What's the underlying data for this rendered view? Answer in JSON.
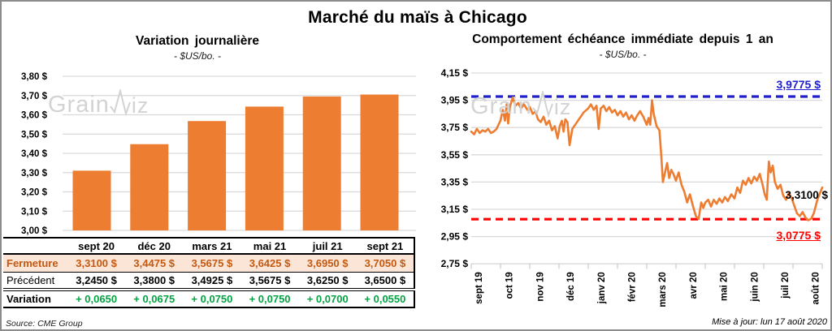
{
  "page_title": "Marché du maïs à Chicago",
  "watermark": {
    "part1": "Grain",
    "part2": "iz"
  },
  "source": "Source: CME Group",
  "updated": "Mise à jour: lun 17 août 2020",
  "colors": {
    "accent_orange": "#ED7D31",
    "threshold_blue": "#2020CC",
    "threshold_red": "#FF0000",
    "variation_green": "#00A441",
    "fermeture_bg": "#FBE5D6",
    "fermeture_text": "#C45911",
    "gridline": "#D9D9D9",
    "watermark_gray": "#D3D3D3"
  },
  "table": {
    "columns": [
      "sept 20",
      "déc 20",
      "mars 21",
      "mai 21",
      "juil 21",
      "sept 21"
    ],
    "rows": [
      {
        "label": "Fermeture",
        "values": [
          "3,3100 $",
          "3,4475 $",
          "3,5675 $",
          "3,6425 $",
          "3,6950 $",
          "3,7050 $"
        ]
      },
      {
        "label": "Précédent",
        "values": [
          "3,2450 $",
          "3,3800 $",
          "3,4925 $",
          "3,5675 $",
          "3,6250 $",
          "3,6500 $"
        ]
      },
      {
        "label": "Variation",
        "values": [
          "+ 0,0650",
          "+ 0,0675",
          "+ 0,0750",
          "+ 0,0750",
          "+ 0,0700",
          "+ 0,0550"
        ]
      }
    ]
  },
  "chart_data": [
    {
      "type": "bar",
      "title": "Variation journalière",
      "subtitle": "- $US/bo. -",
      "categories": [
        "sept 20",
        "déc 20",
        "mars 21",
        "mai 21",
        "juil 21",
        "sept 21"
      ],
      "values": [
        3.31,
        3.4475,
        3.5675,
        3.6425,
        3.695,
        3.705
      ],
      "ylim": [
        3.0,
        3.8
      ],
      "y_step": 0.1,
      "y_ticks": [
        "3,00 $",
        "3,10 $",
        "3,20 $",
        "3,30 $",
        "3,40 $",
        "3,50 $",
        "3,60 $",
        "3,70 $",
        "3,80 $"
      ],
      "grid": true,
      "bar_color": "#ED7D31"
    },
    {
      "type": "line",
      "title": "Comportement échéance immédiate depuis 1 an",
      "subtitle": "- $US/bo. -",
      "ylim": [
        2.75,
        4.15
      ],
      "y_step": 0.2,
      "y_ticks": [
        "2,75 $",
        "2,95 $",
        "3,15 $",
        "3,35 $",
        "3,55 $",
        "3,75 $",
        "3,95 $",
        "4,15 $"
      ],
      "x_ticks": [
        "sept 19",
        "oct 19",
        "nov 19",
        "déc 19",
        "janv 20",
        "févr 20",
        "mars 20",
        "avr 20",
        "mai 20",
        "juin 20",
        "juil 20",
        "août 20"
      ],
      "grid": true,
      "thresholds": [
        {
          "value": 3.9775,
          "label": "3,9775 $",
          "color": "#2020CC",
          "style": "dashed"
        },
        {
          "value": 3.0775,
          "label": "3,0775 $",
          "color": "#FF0000",
          "style": "dashed"
        }
      ],
      "last_point": {
        "value": 3.31,
        "label": "3,3100 $"
      },
      "series": [
        {
          "name": "échéance immédiate",
          "color": "#ED7D31",
          "points": [
            [
              0.0,
              3.72
            ],
            [
              0.008,
              3.7
            ],
            [
              0.016,
              3.74
            ],
            [
              0.024,
              3.71
            ],
            [
              0.032,
              3.73
            ],
            [
              0.04,
              3.72
            ],
            [
              0.048,
              3.74
            ],
            [
              0.056,
              3.71
            ],
            [
              0.064,
              3.72
            ],
            [
              0.072,
              3.74
            ],
            [
              0.083,
              3.8
            ],
            [
              0.09,
              3.88
            ],
            [
              0.096,
              3.8
            ],
            [
              0.101,
              3.92
            ],
            [
              0.105,
              3.78
            ],
            [
              0.11,
              3.9
            ],
            [
              0.118,
              3.97
            ],
            [
              0.126,
              3.91
            ],
            [
              0.134,
              3.93
            ],
            [
              0.142,
              3.89
            ],
            [
              0.15,
              3.92
            ],
            [
              0.16,
              3.88
            ],
            [
              0.167,
              3.9
            ],
            [
              0.175,
              3.85
            ],
            [
              0.183,
              3.87
            ],
            [
              0.19,
              3.81
            ],
            [
              0.198,
              3.79
            ],
            [
              0.206,
              3.83
            ],
            [
              0.214,
              3.77
            ],
            [
              0.222,
              3.8
            ],
            [
              0.23,
              3.73
            ],
            [
              0.238,
              3.76
            ],
            [
              0.246,
              3.67
            ],
            [
              0.252,
              3.76
            ],
            [
              0.258,
              3.8
            ],
            [
              0.263,
              3.72
            ],
            [
              0.268,
              3.81
            ],
            [
              0.274,
              3.79
            ],
            [
              0.28,
              3.62
            ],
            [
              0.288,
              3.74
            ],
            [
              0.296,
              3.77
            ],
            [
              0.304,
              3.8
            ],
            [
              0.312,
              3.83
            ],
            [
              0.32,
              3.86
            ],
            [
              0.333,
              3.89
            ],
            [
              0.341,
              3.92
            ],
            [
              0.349,
              3.88
            ],
            [
              0.357,
              3.91
            ],
            [
              0.363,
              3.74
            ],
            [
              0.369,
              3.89
            ],
            [
              0.377,
              3.91
            ],
            [
              0.385,
              3.87
            ],
            [
              0.393,
              3.9
            ],
            [
              0.401,
              3.86
            ],
            [
              0.409,
              3.88
            ],
            [
              0.417,
              3.84
            ],
            [
              0.425,
              3.87
            ],
            [
              0.433,
              3.83
            ],
            [
              0.441,
              3.86
            ],
            [
              0.449,
              3.81
            ],
            [
              0.457,
              3.84
            ],
            [
              0.465,
              3.8
            ],
            [
              0.473,
              3.84
            ],
            [
              0.481,
              3.87
            ],
            [
              0.49,
              3.83
            ],
            [
              0.5,
              3.77
            ],
            [
              0.505,
              3.82
            ],
            [
              0.51,
              3.77
            ],
            [
              0.515,
              3.95
            ],
            [
              0.52,
              3.85
            ],
            [
              0.528,
              3.76
            ],
            [
              0.536,
              3.73
            ],
            [
              0.541,
              3.56
            ],
            [
              0.546,
              3.35
            ],
            [
              0.552,
              3.42
            ],
            [
              0.558,
              3.49
            ],
            [
              0.564,
              3.38
            ],
            [
              0.57,
              3.44
            ],
            [
              0.576,
              3.41
            ],
            [
              0.583,
              3.36
            ],
            [
              0.591,
              3.42
            ],
            [
              0.599,
              3.33
            ],
            [
              0.607,
              3.28
            ],
            [
              0.615,
              3.2
            ],
            [
              0.623,
              3.26
            ],
            [
              0.631,
              3.18
            ],
            [
              0.64,
              3.1
            ],
            [
              0.648,
              3.08
            ],
            [
              0.655,
              3.2
            ],
            [
              0.661,
              3.16
            ],
            [
              0.667,
              3.2
            ],
            [
              0.675,
              3.22
            ],
            [
              0.683,
              3.17
            ],
            [
              0.691,
              3.22
            ],
            [
              0.699,
              3.19
            ],
            [
              0.707,
              3.23
            ],
            [
              0.715,
              3.2
            ],
            [
              0.723,
              3.24
            ],
            [
              0.731,
              3.21
            ],
            [
              0.741,
              3.26
            ],
            [
              0.75,
              3.23
            ],
            [
              0.758,
              3.31
            ],
            [
              0.766,
              3.27
            ],
            [
              0.774,
              3.36
            ],
            [
              0.782,
              3.33
            ],
            [
              0.79,
              3.38
            ],
            [
              0.798,
              3.34
            ],
            [
              0.806,
              3.39
            ],
            [
              0.814,
              3.36
            ],
            [
              0.822,
              3.41
            ],
            [
              0.83,
              3.33
            ],
            [
              0.836,
              3.26
            ],
            [
              0.842,
              3.22
            ],
            [
              0.848,
              3.5
            ],
            [
              0.853,
              3.42
            ],
            [
              0.859,
              3.47
            ],
            [
              0.865,
              3.35
            ],
            [
              0.873,
              3.3
            ],
            [
              0.881,
              3.33
            ],
            [
              0.889,
              3.25
            ],
            [
              0.897,
              3.22
            ],
            [
              0.905,
              3.27
            ],
            [
              0.913,
              3.23
            ],
            [
              0.92,
              3.18
            ],
            [
              0.928,
              3.12
            ],
            [
              0.936,
              3.1
            ],
            [
              0.944,
              3.13
            ],
            [
              0.952,
              3.09
            ],
            [
              0.96,
              3.07
            ],
            [
              0.968,
              3.08
            ],
            [
              0.976,
              3.12
            ],
            [
              0.986,
              3.22
            ],
            [
              1.0,
              3.31
            ]
          ]
        }
      ]
    }
  ]
}
